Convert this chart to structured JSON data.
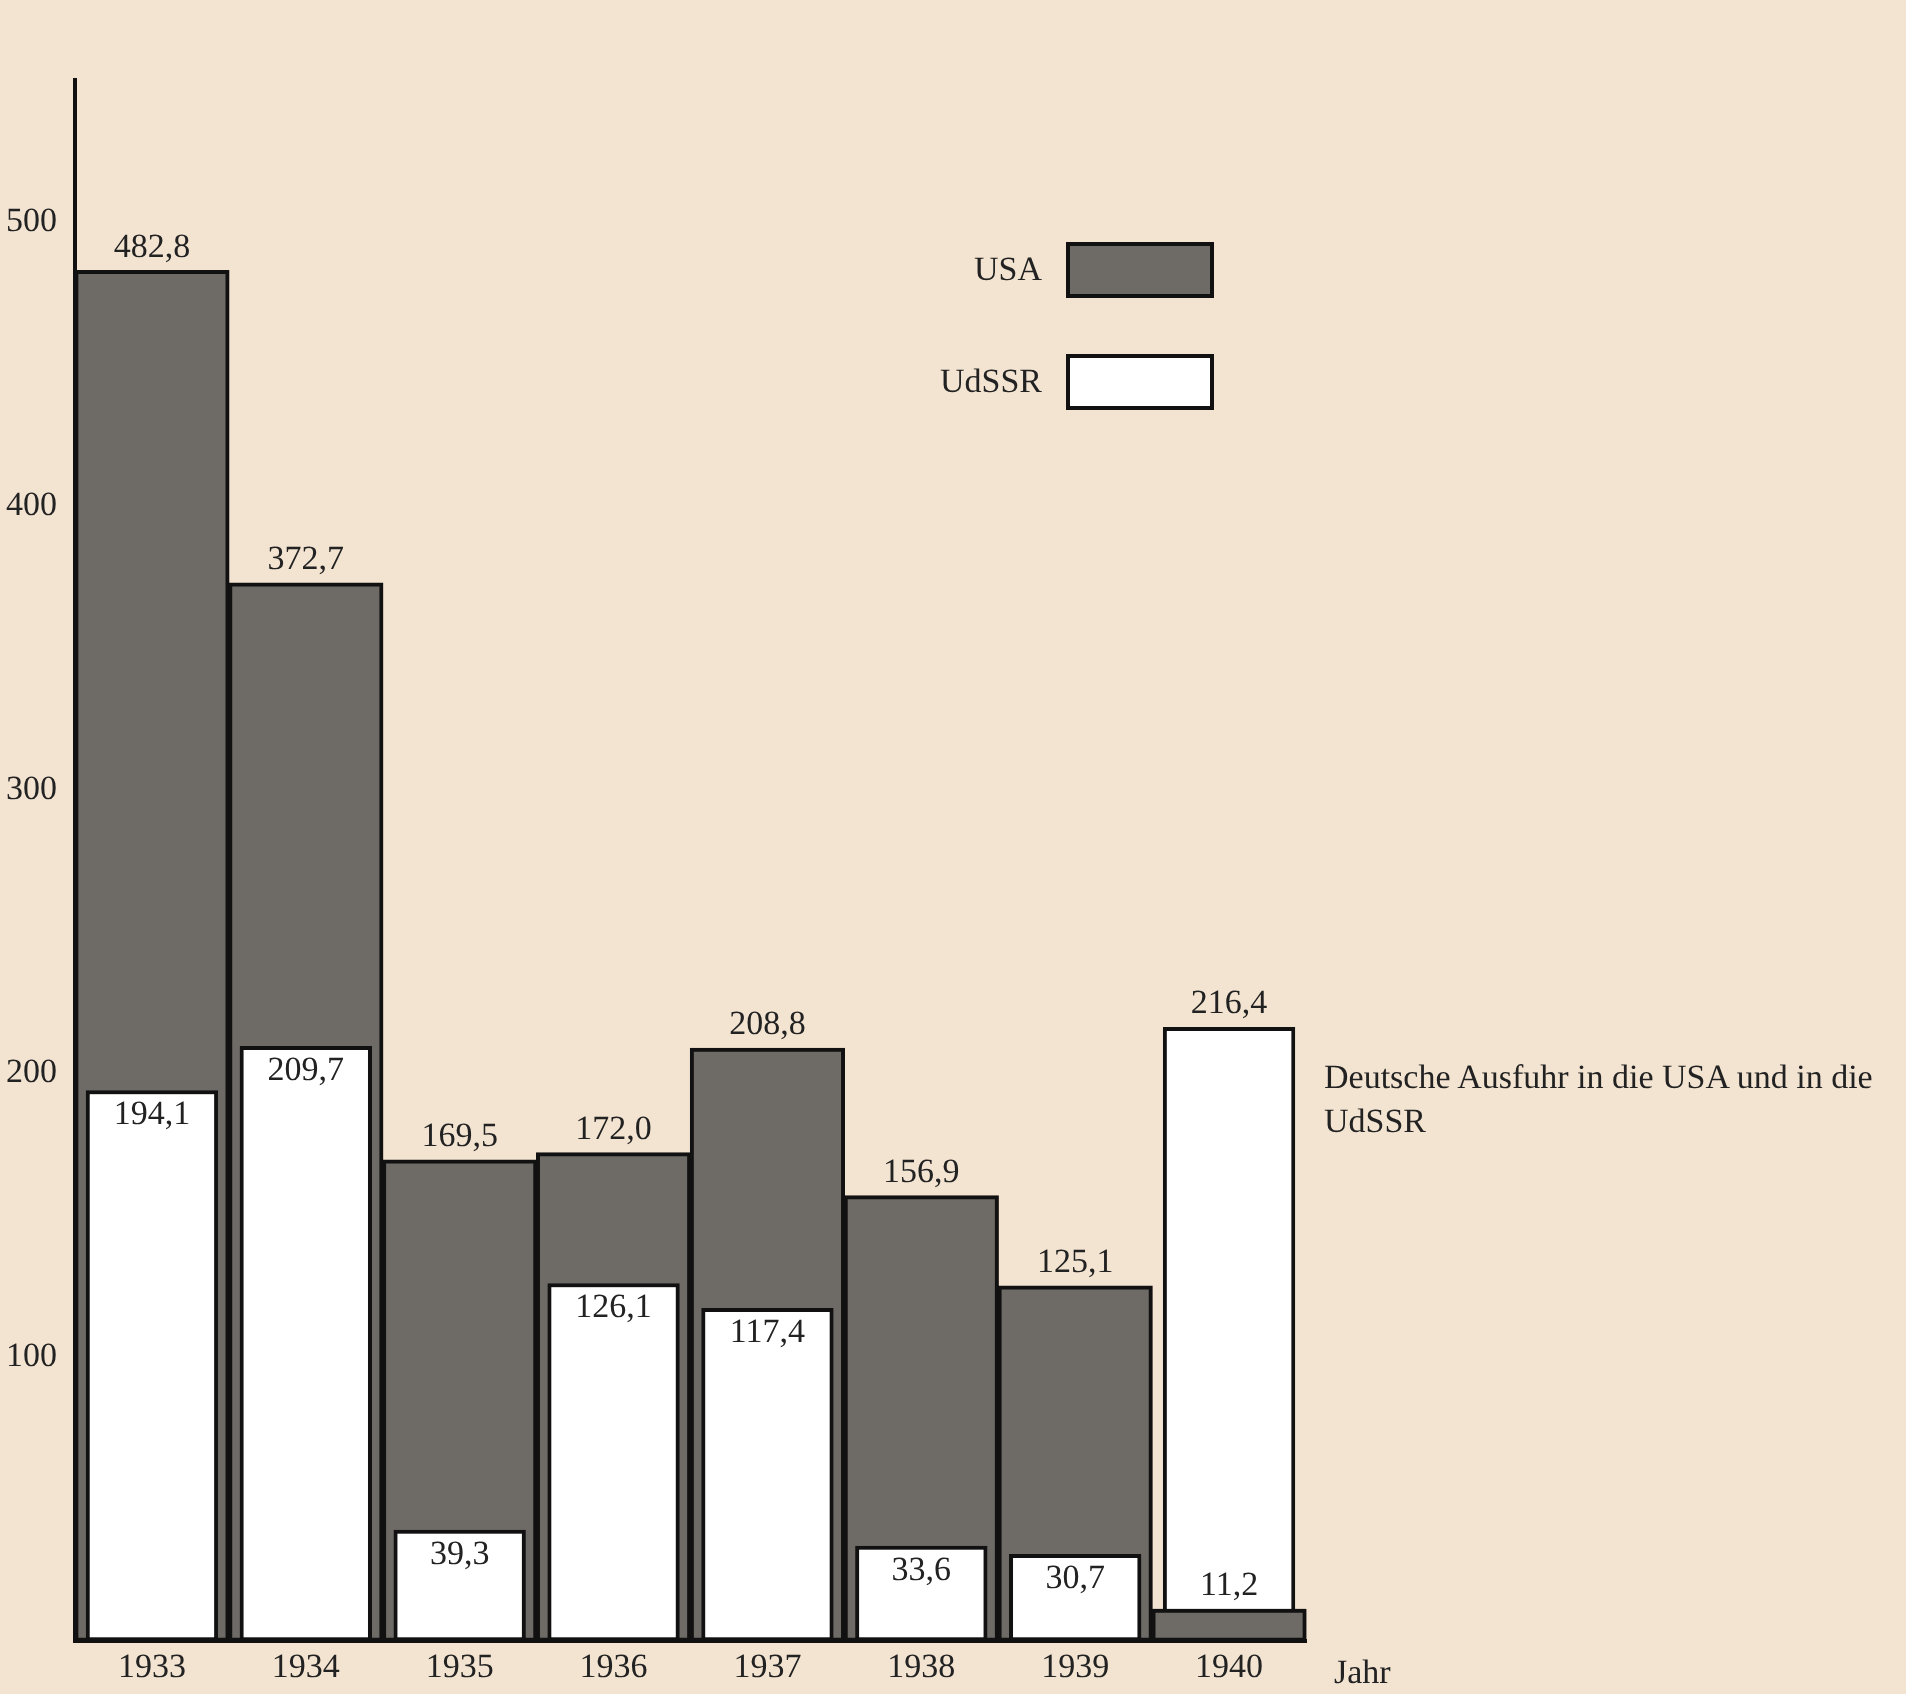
{
  "chart_data": {
    "type": "bar",
    "title": "Deutsche Ausfuhr in die USA und in die UdSSR",
    "xlabel": "Jahr",
    "categories": [
      "1933",
      "1934",
      "1935",
      "1936",
      "1937",
      "1938",
      "1939",
      "1940"
    ],
    "series": [
      {
        "name": "USA",
        "color": "#6e6a66",
        "values": [
          482.8,
          372.7,
          169.5,
          172.0,
          208.8,
          156.9,
          125.1,
          11.2
        ],
        "value_labels": [
          "482,8",
          "372,7",
          "169,5",
          "172,0",
          "208,8",
          "156,9",
          "125,1",
          "11,2"
        ]
      },
      {
        "name": "UdSSR",
        "color": "#ffffff",
        "values": [
          194.1,
          209.7,
          39.3,
          126.1,
          117.4,
          33.6,
          30.7,
          216.4
        ],
        "value_labels": [
          "194,1",
          "209,7",
          "39,3",
          "126,1",
          "117,4",
          "33,6",
          "30,7",
          "216,4"
        ]
      }
    ],
    "ylim": [
      0,
      550
    ],
    "yticks": [
      100,
      200,
      300,
      400,
      500
    ],
    "grid": false,
    "legend": "top right"
  }
}
